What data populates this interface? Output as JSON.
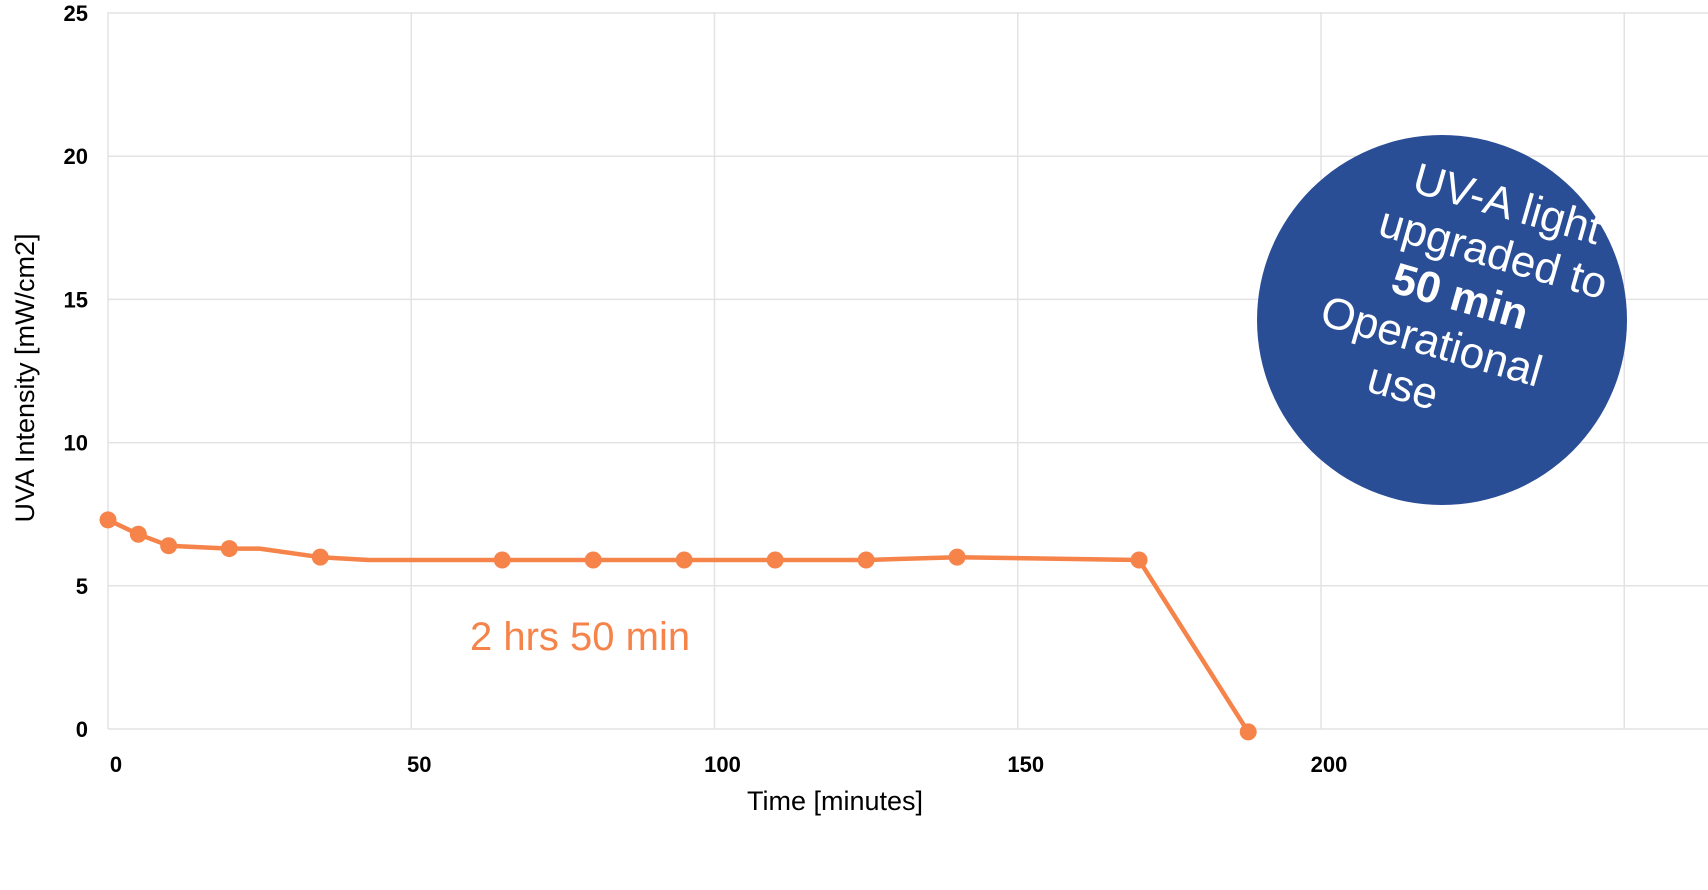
{
  "chart_data": {
    "type": "line",
    "xlabel": "Time [minutes]",
    "ylabel": "UVA Intensity [mW/cm2]",
    "xlim": [
      0,
      240
    ],
    "ylim": [
      0,
      25
    ],
    "x_ticks": [
      "0",
      "50",
      "100",
      "150",
      "200"
    ],
    "y_ticks": [
      "0",
      "5",
      "10",
      "15",
      "20",
      "25"
    ],
    "grid": true,
    "series": [
      {
        "x": [
          0,
          5,
          10,
          20,
          25,
          35,
          43,
          65,
          80,
          95,
          110,
          125,
          140,
          170,
          188
        ],
        "y": [
          7.3,
          6.8,
          6.4,
          6.3,
          6.3,
          6.0,
          5.9,
          5.9,
          5.9,
          5.9,
          5.9,
          5.9,
          6.0,
          5.9,
          -0.1
        ],
        "markers": [
          true,
          true,
          true,
          true,
          false,
          true,
          false,
          true,
          true,
          true,
          true,
          true,
          true,
          true,
          true
        ]
      }
    ],
    "annotations": [
      {
        "text": "2 hrs 50 min"
      }
    ],
    "callout": {
      "line1": "UV-A light",
      "line2": "upgraded to",
      "line3": "50 min",
      "line4": "Operational",
      "line5": "use"
    },
    "colors": {
      "series": "#F5834A",
      "callout": "#2A4E96",
      "grid": "#E3E3E3"
    }
  }
}
